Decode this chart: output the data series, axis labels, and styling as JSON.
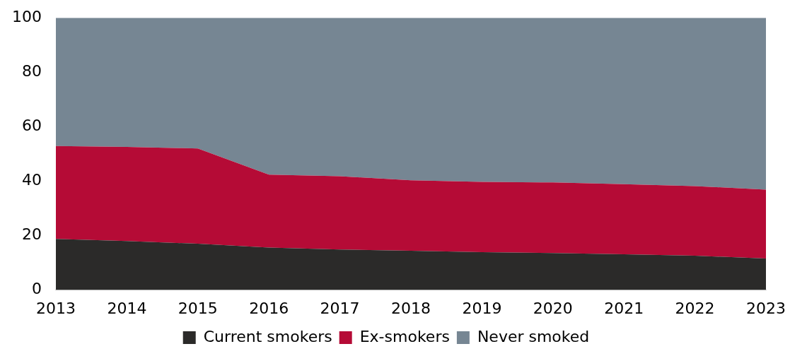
{
  "chart_data": {
    "type": "area",
    "stacked": true,
    "categories": [
      "2013",
      "2014",
      "2015",
      "2016",
      "2017",
      "2018",
      "2019",
      "2020",
      "2021",
      "2022",
      "2023"
    ],
    "series": [
      {
        "name": "Current smokers",
        "color": "#2b2a29",
        "values": [
          18.8,
          18.0,
          17.0,
          15.6,
          14.9,
          14.4,
          13.9,
          13.6,
          13.1,
          12.6,
          11.6
        ]
      },
      {
        "name": "Ex-smokers",
        "color": "#b50b36",
        "values": [
          34.1,
          34.6,
          35.0,
          26.8,
          26.9,
          25.9,
          25.8,
          25.9,
          25.8,
          25.6,
          25.3
        ]
      },
      {
        "name": "Never smoked",
        "color": "#768693",
        "values": [
          47.1,
          47.4,
          48.0,
          57.6,
          58.2,
          59.7,
          60.3,
          60.5,
          61.1,
          61.8,
          63.1
        ]
      }
    ],
    "ylim": [
      0,
      100
    ],
    "yticks": [
      0,
      20,
      40,
      60,
      80,
      100
    ],
    "grid": false,
    "legend": "bottom"
  }
}
